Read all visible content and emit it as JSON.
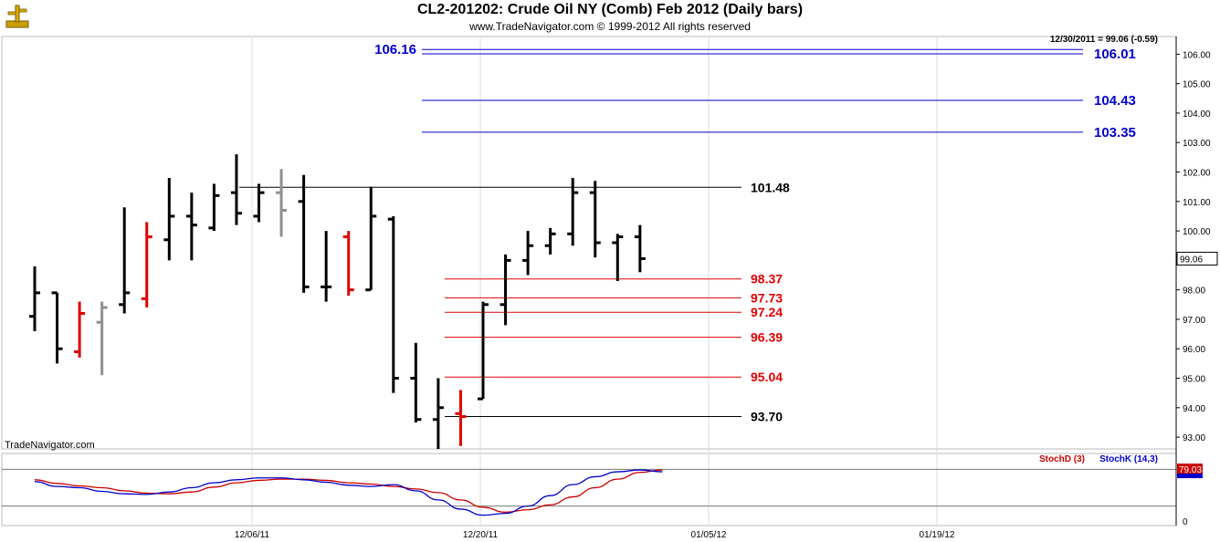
{
  "header": {
    "title": "CL2-201202:  Crude Oil NY (Comb) Feb 2012  (Daily bars)",
    "subtitle": "www.TradeNavigator.com © 1999-2012 All rights reserved",
    "last_bar_info": "12/30/2011 = 99.06 (-0.59)",
    "watermark": "TradeNavigator.com"
  },
  "colors": {
    "up": "#000000",
    "down": "#e00000",
    "neutral": "#909090",
    "blue_level": "#0000cc",
    "red_level": "#e00000",
    "black_level": "#000000",
    "stoch_d": "#cc0000",
    "stoch_k": "#0000cc"
  },
  "chart_data": [
    {
      "type": "ohlc",
      "title": "CL2-201202:  Crude Oil NY (Comb) Feb 2012  (Daily bars)",
      "ylim": [
        92.6,
        106.6
      ],
      "y_ticks": [
        "93.00",
        "94.00",
        "95.00",
        "96.00",
        "97.00",
        "98.00",
        "99.00",
        "100.00",
        "101.00",
        "102.00",
        "103.00",
        "104.00",
        "105.00",
        "106.00"
      ],
      "x_ticks": [
        "12/06/11",
        "12/20/11",
        "01/05/12",
        "01/19/12"
      ],
      "current_price": "99.06",
      "bars": [
        {
          "o": 97.1,
          "h": 98.8,
          "l": 96.6,
          "c": 97.9,
          "color": "up"
        },
        {
          "o": 97.9,
          "h": 97.9,
          "l": 95.5,
          "c": 96.0,
          "color": "up"
        },
        {
          "o": 95.9,
          "h": 97.6,
          "l": 95.7,
          "c": 97.2,
          "color": "down"
        },
        {
          "o": 96.9,
          "h": 97.6,
          "l": 95.1,
          "c": 97.4,
          "color": "neutral"
        },
        {
          "o": 97.5,
          "h": 100.8,
          "l": 97.2,
          "c": 97.9,
          "color": "up"
        },
        {
          "o": 97.7,
          "h": 100.3,
          "l": 97.4,
          "c": 99.8,
          "color": "down"
        },
        {
          "o": 99.7,
          "h": 101.8,
          "l": 99.0,
          "c": 100.5,
          "color": "up"
        },
        {
          "o": 100.5,
          "h": 101.3,
          "l": 99.0,
          "c": 100.2,
          "color": "up"
        },
        {
          "o": 100.1,
          "h": 101.6,
          "l": 100.0,
          "c": 101.2,
          "color": "up"
        },
        {
          "o": 101.3,
          "h": 102.6,
          "l": 100.2,
          "c": 100.6,
          "color": "up"
        },
        {
          "o": 100.5,
          "h": 101.6,
          "l": 100.3,
          "c": 101.3,
          "color": "up"
        },
        {
          "o": 101.3,
          "h": 102.1,
          "l": 99.8,
          "c": 100.7,
          "color": "neutral"
        },
        {
          "o": 101.0,
          "h": 101.9,
          "l": 97.9,
          "c": 98.1,
          "color": "up"
        },
        {
          "o": 98.1,
          "h": 100.0,
          "l": 97.6,
          "c": 98.1,
          "color": "up"
        },
        {
          "o": 99.8,
          "h": 100.0,
          "l": 97.8,
          "c": 98.0,
          "color": "down"
        },
        {
          "o": 98.0,
          "h": 101.5,
          "l": 98.0,
          "c": 100.5,
          "color": "up"
        },
        {
          "o": 100.4,
          "h": 100.5,
          "l": 94.5,
          "c": 95.0,
          "color": "up"
        },
        {
          "o": 95.0,
          "h": 96.2,
          "l": 93.5,
          "c": 93.6,
          "color": "up"
        },
        {
          "o": 93.6,
          "h": 95.0,
          "l": 92.6,
          "c": 94.0,
          "color": "up"
        },
        {
          "o": 93.8,
          "h": 94.6,
          "l": 92.7,
          "c": 93.7,
          "color": "down"
        },
        {
          "o": 94.3,
          "h": 97.6,
          "l": 94.3,
          "c": 97.5,
          "color": "up"
        },
        {
          "o": 97.5,
          "h": 99.2,
          "l": 96.8,
          "c": 99.0,
          "color": "up"
        },
        {
          "o": 99.0,
          "h": 100.0,
          "l": 98.5,
          "c": 99.5,
          "color": "up"
        },
        {
          "o": 99.5,
          "h": 100.1,
          "l": 99.2,
          "c": 99.9,
          "color": "up"
        },
        {
          "o": 99.9,
          "h": 101.8,
          "l": 99.5,
          "c": 101.3,
          "color": "up"
        },
        {
          "o": 101.3,
          "h": 101.7,
          "l": 99.1,
          "c": 99.6,
          "color": "up"
        },
        {
          "o": 99.6,
          "h": 99.9,
          "l": 98.3,
          "c": 99.8,
          "color": "up"
        },
        {
          "o": 99.8,
          "h": 100.2,
          "l": 98.6,
          "c": 99.06,
          "color": "up"
        }
      ],
      "levels": [
        {
          "value": 106.16,
          "label": "106.16",
          "color": "blue_level",
          "label_side": "left"
        },
        {
          "value": 106.01,
          "label": "106.01",
          "color": "blue_level",
          "label_side": "right"
        },
        {
          "value": 104.43,
          "label": "104.43",
          "color": "blue_level",
          "label_side": "right"
        },
        {
          "value": 103.35,
          "label": "103.35",
          "color": "blue_level",
          "label_side": "right"
        },
        {
          "value": 101.48,
          "label": "101.48",
          "color": "black_level",
          "label_side": "mid"
        },
        {
          "value": 98.37,
          "label": "98.37",
          "color": "red_level",
          "label_side": "mid"
        },
        {
          "value": 97.73,
          "label": "97.73",
          "color": "red_level",
          "label_side": "mid"
        },
        {
          "value": 97.24,
          "label": "97.24",
          "color": "red_level",
          "label_side": "mid"
        },
        {
          "value": 96.39,
          "label": "96.39",
          "color": "red_level",
          "label_side": "mid"
        },
        {
          "value": 95.04,
          "label": "95.04",
          "color": "red_level",
          "label_side": "mid"
        },
        {
          "value": 93.7,
          "label": "93.70",
          "color": "black_level",
          "label_side": "mid"
        }
      ]
    },
    {
      "type": "line",
      "legend": [
        "StochD (3)",
        "StochK (14,3)"
      ],
      "ylim": [
        0,
        100
      ],
      "y_ticks": [
        "0"
      ],
      "reference_levels": [
        80,
        20
      ],
      "current_value": "79.03",
      "series": [
        {
          "name": "StochD (3)",
          "color": "stoch_d",
          "values": [
            63,
            57,
            53,
            50,
            45,
            41,
            40,
            43,
            51,
            58,
            62,
            64,
            64,
            62,
            58,
            56,
            52,
            48,
            42,
            30,
            18,
            10,
            14,
            22,
            35,
            50,
            64,
            75,
            79
          ]
        },
        {
          "name": "StochK (14,3)",
          "color": "stoch_k",
          "values": [
            60,
            52,
            50,
            44,
            40,
            39,
            43,
            50,
            58,
            63,
            66,
            66,
            63,
            59,
            54,
            52,
            55,
            45,
            30,
            15,
            5,
            8,
            20,
            37,
            55,
            68,
            76,
            79,
            76
          ]
        }
      ]
    }
  ]
}
